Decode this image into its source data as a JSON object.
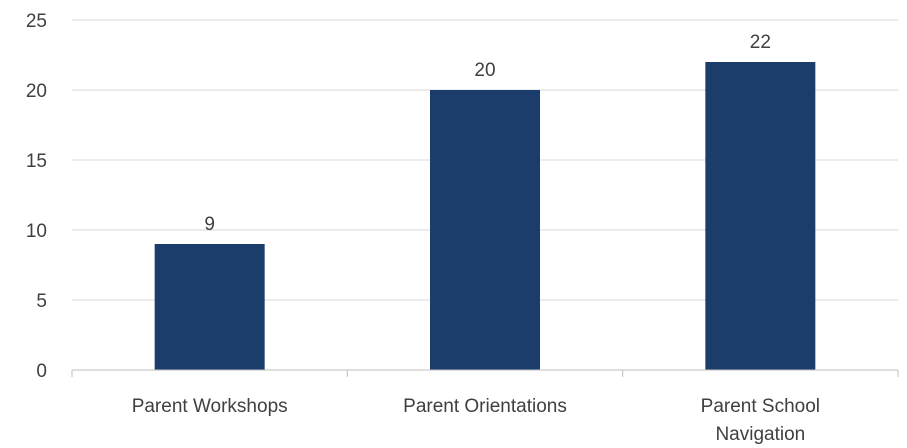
{
  "chart_data": {
    "type": "bar",
    "categories": [
      [
        "Parent Workshops"
      ],
      [
        "Parent Orientations"
      ],
      [
        "Parent School",
        "Navigation"
      ]
    ],
    "values": [
      9,
      20,
      22
    ],
    "ylim": [
      0,
      25
    ],
    "yticks": [
      0,
      5,
      10,
      15,
      20,
      25
    ],
    "grid": true,
    "bar_color": "#1b3d6b",
    "grid_color": "#d9d9d9",
    "axis_color": "#bfbfbf",
    "text_color": "#404040"
  }
}
